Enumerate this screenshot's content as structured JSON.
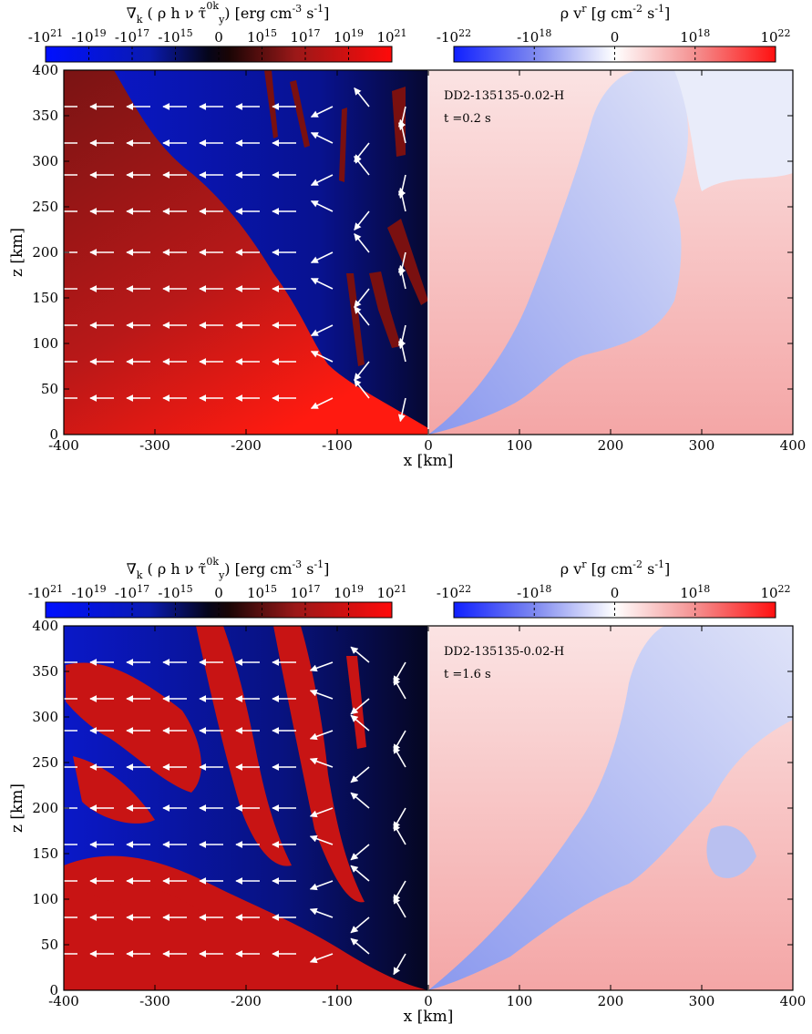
{
  "figure": {
    "panels": [
      {
        "id": "top",
        "left_colorbar": {
          "title": "∇_k ( ρ h ν τ̃^{0k}_y ) [erg cm^-3 s^-1]",
          "title_parts": {
            "pre": "∇",
            "sub_k": "k",
            "mid": " ( ρ h ν τ̃",
            "sup": "0k",
            "sub": "y",
            "post": ") [erg cm",
            "unit_sup1": "-3",
            "unit_mid": " s",
            "unit_sup2": "-1",
            "close": "]"
          },
          "tick_labels": [
            "-10^21",
            "-10^19",
            "-10^17",
            "-10^15",
            "0",
            "10^15",
            "10^17",
            "10^19",
            "10^21"
          ],
          "colormap": "blue-black-red"
        },
        "right_colorbar": {
          "title": "ρ v^r [g cm^-2 s^-1]",
          "tick_labels": [
            "-10^22",
            "-10^18",
            "0",
            "10^18",
            "10^22"
          ],
          "colormap": "blue-white-red"
        },
        "annotation_run": "DD2-135135-0.02-H",
        "annotation_time": "t =0.2 s"
      },
      {
        "id": "bottom",
        "left_colorbar": {
          "title": "∇_k ( ρ h ν τ̃^{0k}_y ) [erg cm^-3 s^-1]",
          "tick_labels": [
            "-10^21",
            "-10^19",
            "-10^17",
            "-10^15",
            "0",
            "10^15",
            "10^17",
            "10^19",
            "10^21"
          ],
          "colormap": "blue-black-red"
        },
        "right_colorbar": {
          "title": "ρ v^r [g cm^-2 s^-1]",
          "tick_labels": [
            "-10^22",
            "-10^18",
            "0",
            "10^18",
            "10^22"
          ],
          "colormap": "blue-white-red"
        },
        "annotation_run": "DD2-135135-0.02-H",
        "annotation_time": "t =1.6 s"
      }
    ],
    "xlabel": "x [km]",
    "ylabel": "z [km]",
    "colors": {
      "neg_blue": "#0a14e6",
      "pos_red": "#c81414",
      "bright_red": "#ff1a1a",
      "dark_red": "#7a1010",
      "dark": "#050510",
      "pale_blue": "#cdd3f4",
      "pale_red": "#f9cfcf",
      "arrow": "#ffffff"
    }
  },
  "chart_data": [
    {
      "type": "heatmap",
      "panel": "top",
      "xlim": [
        -400,
        400
      ],
      "ylim": [
        0,
        400
      ],
      "x_ticks": [
        -400,
        -300,
        -200,
        -100,
        0,
        100,
        200,
        300,
        400
      ],
      "y_ticks": [
        0,
        50,
        100,
        150,
        200,
        250,
        300,
        350,
        400
      ],
      "xlabel": "x [km]",
      "ylabel": "z [km]",
      "left_half": "neutrino momentum deposition (vector field, arrows)",
      "right_half": "radial mass flux",
      "arrow_rows_z": [
        40,
        80,
        120,
        160,
        200,
        245,
        285,
        320,
        360
      ]
    },
    {
      "type": "heatmap",
      "panel": "bottom",
      "xlim": [
        -400,
        400
      ],
      "ylim": [
        0,
        400
      ],
      "x_ticks": [
        -400,
        -300,
        -200,
        -100,
        0,
        100,
        200,
        300,
        400
      ],
      "y_ticks": [
        0,
        50,
        100,
        150,
        200,
        250,
        300,
        350,
        400
      ],
      "xlabel": "x [km]",
      "ylabel": "z [km]",
      "arrow_rows_z": [
        40,
        80,
        120,
        160,
        200,
        245,
        285,
        320,
        360
      ]
    }
  ]
}
